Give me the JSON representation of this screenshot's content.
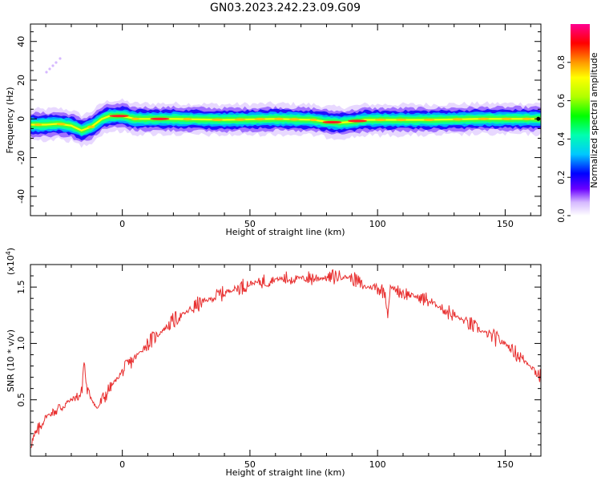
{
  "figure": {
    "title": "GN03.2023.242.23.09.G09"
  },
  "chart_data": [
    {
      "type": "heatmap",
      "xlabel": "Height of straight line (km)",
      "ylabel": "Frequency (Hz)",
      "xlim": [
        -36,
        164
      ],
      "ylim": [
        -50,
        49
      ],
      "xticks": [
        "0",
        "50",
        "100",
        "150"
      ],
      "yticks": [
        "-40",
        "-20",
        "0",
        "20",
        "40"
      ],
      "ridge": {
        "x": [
          -36,
          -30,
          -25,
          -20,
          -16,
          -12,
          -8,
          -5,
          0,
          5,
          10,
          20,
          40,
          60,
          75,
          80,
          85,
          90,
          95,
          100,
          110,
          120,
          140,
          164
        ],
        "y": [
          -3,
          -3,
          -2.5,
          -3.5,
          -6,
          -4,
          0,
          1.5,
          1.5,
          0,
          0,
          0,
          -0.5,
          0,
          -0.5,
          -1.5,
          -2,
          -1.5,
          -0.5,
          -0.5,
          -0.5,
          -0.5,
          0,
          0
        ]
      },
      "colorbar": {
        "label": "Normalized spectral amplitude",
        "ticks": [
          "0.0",
          "0.2",
          "0.4",
          "0.6",
          "0.8"
        ],
        "range": [
          0,
          1
        ]
      }
    },
    {
      "type": "line",
      "xlabel": "Height of straight line (km)",
      "ylabel": "SNR (10 * v/v)",
      "multiplier": "(x10",
      "multiplier_exp": "4",
      "multiplier_close": ")",
      "xlim": [
        -36,
        164
      ],
      "ylim": [
        0.0,
        1.7
      ],
      "xticks": [
        "0",
        "50",
        "100",
        "150"
      ],
      "yticks": [
        "0.5",
        "1.0",
        "1.5"
      ],
      "series": [
        {
          "color": "#e83030",
          "x": [
            -36,
            -30,
            -25,
            -20,
            -16,
            -15,
            -14,
            -10,
            -5,
            0,
            10,
            20,
            30,
            40,
            50,
            60,
            70,
            80,
            85,
            90,
            95,
            100,
            103,
            104,
            105,
            110,
            120,
            130,
            140,
            150,
            160,
            164
          ],
          "y": [
            0.1,
            0.35,
            0.42,
            0.5,
            0.55,
            0.85,
            0.6,
            0.42,
            0.6,
            0.75,
            1.0,
            1.2,
            1.35,
            1.45,
            1.53,
            1.57,
            1.58,
            1.58,
            1.6,
            1.58,
            1.5,
            1.5,
            1.45,
            1.25,
            1.5,
            1.45,
            1.38,
            1.25,
            1.12,
            1.0,
            0.8,
            0.7
          ]
        }
      ]
    }
  ]
}
